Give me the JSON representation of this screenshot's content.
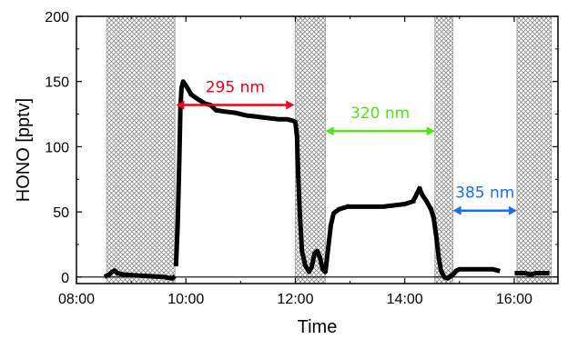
{
  "chart_data": {
    "type": "line",
    "title": "",
    "xlabel": "Time",
    "ylabel": "HONO [pptv]",
    "x_unit": "hours (clock time)",
    "xlim": [
      8.0,
      16.8
    ],
    "ylim": [
      -5,
      200
    ],
    "x_ticks": [
      {
        "value": 8,
        "label": "08:00"
      },
      {
        "value": 10,
        "label": "10:00"
      },
      {
        "value": 12,
        "label": "12:00"
      },
      {
        "value": 14,
        "label": "14:00"
      },
      {
        "value": 16,
        "label": "16:00"
      }
    ],
    "y_ticks": [
      {
        "value": 0,
        "label": "0"
      },
      {
        "value": 50,
        "label": "50"
      },
      {
        "value": 100,
        "label": "100"
      },
      {
        "value": 150,
        "label": "150"
      },
      {
        "value": 200,
        "label": "200"
      }
    ],
    "grid": false,
    "zero_line": true,
    "dark_periods": [
      [
        8.55,
        9.8
      ],
      [
        12.0,
        12.55
      ],
      [
        14.55,
        14.88
      ],
      [
        16.05,
        16.68
      ]
    ],
    "series": [
      {
        "color": "#000000",
        "segments": [
          [
            [
              8.55,
              1
            ],
            [
              8.6,
              2
            ],
            [
              8.65,
              4
            ],
            [
              8.7,
              5
            ],
            [
              8.75,
              3
            ],
            [
              8.85,
              2
            ],
            [
              9.0,
              1.5
            ],
            [
              9.2,
              1
            ],
            [
              9.4,
              0.5
            ],
            [
              9.6,
              0
            ],
            [
              9.75,
              -1
            ],
            [
              9.78,
              0
            ]
          ],
          [
            [
              9.82,
              10
            ],
            [
              9.85,
              40
            ],
            [
              9.88,
              90
            ],
            [
              9.9,
              130
            ],
            [
              9.92,
              145
            ],
            [
              9.95,
              150
            ],
            [
              10.0,
              147
            ],
            [
              10.1,
              140
            ],
            [
              10.2,
              137
            ],
            [
              10.35,
              133
            ],
            [
              10.45,
              132
            ],
            [
              10.55,
              128
            ],
            [
              10.7,
              127
            ],
            [
              10.9,
              126
            ],
            [
              11.1,
              124
            ],
            [
              11.3,
              123
            ],
            [
              11.5,
              122
            ],
            [
              11.7,
              121
            ],
            [
              11.85,
              121
            ],
            [
              11.95,
              120
            ],
            [
              12.0,
              119
            ],
            [
              12.03,
              108
            ],
            [
              12.05,
              80
            ],
            [
              12.08,
              50
            ],
            [
              12.12,
              20
            ],
            [
              12.18,
              9
            ],
            [
              12.25,
              4
            ],
            [
              12.3,
              8
            ],
            [
              12.35,
              18
            ],
            [
              12.4,
              20
            ],
            [
              12.45,
              15
            ],
            [
              12.5,
              6
            ],
            [
              12.55,
              4
            ],
            [
              12.6,
              22
            ],
            [
              12.65,
              40
            ],
            [
              12.7,
              49
            ],
            [
              12.8,
              52
            ],
            [
              12.95,
              54
            ],
            [
              13.2,
              54
            ],
            [
              13.4,
              54
            ],
            [
              13.6,
              54
            ],
            [
              13.8,
              55
            ],
            [
              14.0,
              56
            ],
            [
              14.15,
              58
            ],
            [
              14.2,
              62
            ],
            [
              14.27,
              68
            ],
            [
              14.32,
              63
            ],
            [
              14.4,
              58
            ],
            [
              14.48,
              52
            ],
            [
              14.53,
              45
            ],
            [
              14.58,
              30
            ],
            [
              14.62,
              15
            ],
            [
              14.66,
              5
            ],
            [
              14.72,
              0
            ],
            [
              14.78,
              -1
            ],
            [
              14.82,
              0
            ],
            [
              14.88,
              2
            ],
            [
              14.95,
              5
            ],
            [
              15.0,
              6
            ],
            [
              15.2,
              6
            ],
            [
              15.4,
              6
            ],
            [
              15.6,
              6
            ],
            [
              15.7,
              5
            ]
          ],
          [
            [
              16.05,
              3
            ],
            [
              16.1,
              3
            ],
            [
              16.2,
              3
            ],
            [
              16.3,
              2
            ],
            [
              16.4,
              3
            ],
            [
              16.5,
              3
            ],
            [
              16.6,
              3
            ]
          ]
        ]
      }
    ],
    "annotations": [
      {
        "text": "295 nm",
        "color": "#e8001c",
        "x_start": 9.82,
        "x_end": 11.98,
        "y": 132,
        "label_y": 146
      },
      {
        "text": "320 nm",
        "color": "#55e01a",
        "x_start": 12.55,
        "x_end": 14.55,
        "y": 112,
        "label_y": 126
      },
      {
        "text": "385 nm",
        "color": "#1a6ee8",
        "x_start": 14.88,
        "x_end": 16.05,
        "y": 51,
        "label_y": 65
      }
    ]
  }
}
